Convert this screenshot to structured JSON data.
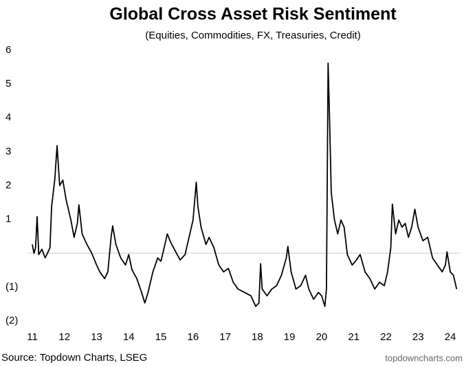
{
  "chart_data": {
    "type": "line",
    "title": "Global Cross Asset Risk Sentiment",
    "subtitle": "(Equities, Commodities, FX, Treasuries, Credit)",
    "source": "Source: Topdown Charts, LSEG",
    "watermark": "topdowncharts.com",
    "color": "#000000",
    "reference_line": 0,
    "xlim": [
      10.85,
      24.3
    ],
    "xticks": [
      11,
      12,
      13,
      14,
      15,
      16,
      17,
      18,
      19,
      20,
      21,
      22,
      23,
      24
    ],
    "ylim": [
      -2,
      6
    ],
    "yticks": [
      6,
      5,
      4,
      3,
      2,
      1,
      {
        "value": -1,
        "label": "(1)"
      },
      {
        "value": -2,
        "label": "(2)"
      }
    ],
    "x": [
      11.0,
      11.05,
      11.1,
      11.15,
      11.2,
      11.3,
      11.4,
      11.5,
      11.55,
      11.6,
      11.7,
      11.77,
      11.85,
      11.95,
      12.05,
      12.2,
      12.3,
      12.4,
      12.45,
      12.55,
      12.7,
      12.85,
      13.0,
      13.1,
      13.25,
      13.35,
      13.45,
      13.5,
      13.6,
      13.75,
      13.9,
      14.0,
      14.1,
      14.25,
      14.4,
      14.5,
      14.6,
      14.75,
      14.9,
      15.0,
      15.1,
      15.2,
      15.3,
      15.45,
      15.6,
      15.75,
      15.9,
      16.0,
      16.1,
      16.15,
      16.25,
      16.4,
      16.5,
      16.65,
      16.8,
      16.95,
      17.1,
      17.25,
      17.4,
      17.6,
      17.8,
      17.95,
      18.05,
      18.1,
      18.15,
      18.3,
      18.45,
      18.6,
      18.75,
      18.9,
      18.95,
      19.05,
      19.2,
      19.35,
      19.5,
      19.6,
      19.75,
      19.9,
      20.0,
      20.1,
      20.15,
      20.2,
      20.25,
      20.3,
      20.4,
      20.5,
      20.6,
      20.7,
      20.8,
      20.95,
      21.05,
      21.2,
      21.35,
      21.5,
      21.65,
      21.8,
      21.95,
      22.05,
      22.15,
      22.2,
      22.3,
      22.4,
      22.5,
      22.6,
      22.7,
      22.8,
      22.9,
      23.0,
      23.15,
      23.3,
      23.45,
      23.6,
      23.75,
      23.85,
      23.9,
      24.0,
      24.1,
      24.2
    ],
    "values": [
      0.26,
      0,
      0.16,
      1.08,
      -0.04,
      0.12,
      -0.14,
      0.06,
      0.16,
      1.38,
      2.2,
      3.18,
      2.0,
      2.16,
      1.59,
      0.98,
      0.47,
      0.88,
      1.43,
      0.57,
      0.26,
      0,
      -0.35,
      -0.55,
      -0.75,
      -0.55,
      0.47,
      0.81,
      0.26,
      -0.14,
      -0.35,
      -0.04,
      -0.49,
      -0.75,
      -1.16,
      -1.47,
      -1.16,
      -0.55,
      -0.14,
      -0.24,
      0.16,
      0.57,
      0.33,
      0.06,
      -0.2,
      -0.04,
      0.57,
      0.98,
      2.1,
      1.38,
      0.77,
      0.26,
      0.47,
      0.16,
      -0.35,
      -0.55,
      -0.45,
      -0.86,
      -1.06,
      -1.16,
      -1.26,
      -1.57,
      -1.47,
      -0.31,
      -1.06,
      -1.26,
      -1.06,
      -0.96,
      -0.65,
      -0.14,
      0.2,
      -0.55,
      -1.06,
      -0.96,
      -0.65,
      -1.06,
      -1.36,
      -1.16,
      -1.26,
      -1.57,
      -1.06,
      5.62,
      3.83,
      1.79,
      0.98,
      0.57,
      0.98,
      0.77,
      -0.04,
      -0.35,
      -0.24,
      -0.04,
      -0.55,
      -0.75,
      -1.06,
      -0.86,
      -0.96,
      -0.55,
      0.16,
      1.45,
      0.57,
      0.98,
      0.77,
      0.88,
      0.47,
      0.77,
      1.3,
      0.77,
      0.37,
      0.47,
      -0.14,
      -0.35,
      -0.55,
      -0.35,
      0.04,
      -0.55,
      -0.65,
      -1.06
    ]
  }
}
